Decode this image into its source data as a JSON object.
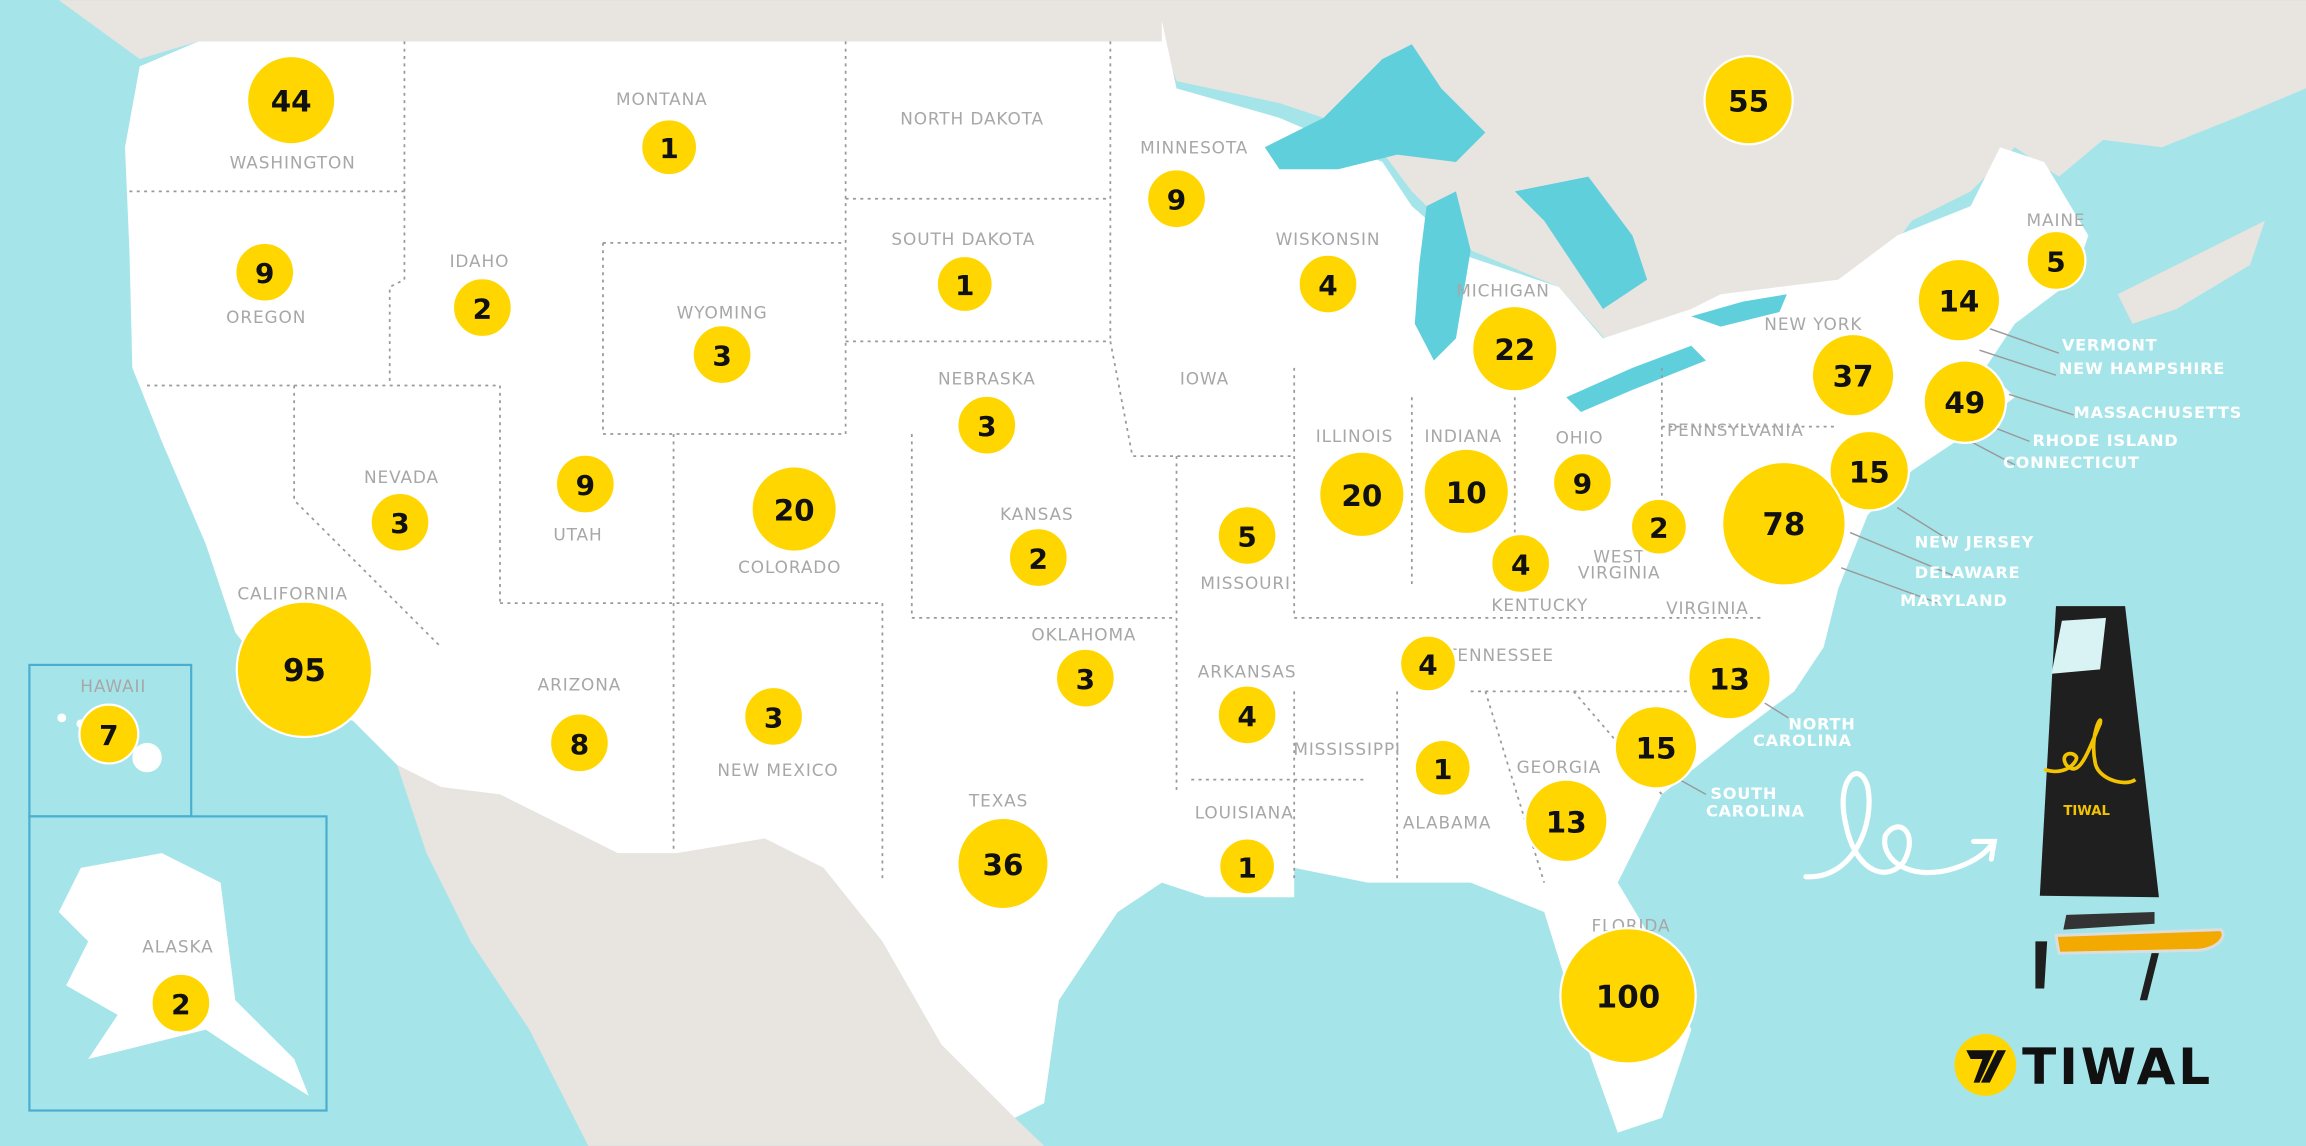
{
  "colors": {
    "water": "#a5e5ea",
    "land": "#ffffff",
    "foreign_land": "#e8e4e0",
    "lake": "#5fcfdc",
    "marker": "#ffd600",
    "marker_text": "#111111",
    "label": "#a7a7a7"
  },
  "state_labels": [
    "WASHINGTON",
    "MONTANA",
    "NORTH DAKOTA",
    "MINNESOTA",
    "SOUTH DAKOTA",
    "WISKONSIN",
    "MICHIGAN",
    "IDAHO",
    "OREGON",
    "WYOMING",
    "NEBRASKA",
    "IOWA",
    "NEW YORK",
    "PENNSYLVANIA",
    "ILLINOIS",
    "INDIANA",
    "OHIO",
    "NEVADA",
    "UTAH",
    "COLORADO",
    "KANSAS",
    "MISSOURI",
    "WEST",
    "VIRGINIA",
    "KENTUCKY",
    "VIRGINIA",
    "CALIFORNIA",
    "TENNESSEE",
    "OKLAHOMA",
    "ARKANSAS",
    "ARIZONA",
    "NEW MEXICO",
    "MISSISSIPPI",
    "ALABAMA",
    "GEORGIA",
    "TEXAS",
    "LOUISIANA",
    "HAWAII",
    "ALASKA",
    "FLORIDA",
    "MAINE"
  ],
  "callout_labels": [
    "VERMONT",
    "NEW HAMPSHIRE",
    "MASSACHUSETTS",
    "RHODE ISLAND",
    "CONNECTICUT",
    "NEW JERSEY",
    "DELAWARE",
    "MARYLAND",
    "NORTH",
    "CAROLINA",
    "SOUTH",
    "CAROLINA"
  ],
  "markers": [
    {
      "region": "Washington",
      "value": "44"
    },
    {
      "region": "Montana",
      "value": "1"
    },
    {
      "region": "Minnesota",
      "value": "9"
    },
    {
      "region": "Canada",
      "value": "55"
    },
    {
      "region": "Oregon",
      "value": "9"
    },
    {
      "region": "Idaho",
      "value": "2"
    },
    {
      "region": "Wyoming",
      "value": "3"
    },
    {
      "region": "South Dakota",
      "value": "1"
    },
    {
      "region": "Wisconsin",
      "value": "4"
    },
    {
      "region": "Michigan",
      "value": "22"
    },
    {
      "region": "New York",
      "value": "37"
    },
    {
      "region": "Vermont / New Hampshire",
      "value": "14"
    },
    {
      "region": "Maine",
      "value": "5"
    },
    {
      "region": "Massachusetts / Rhode Island / Connecticut",
      "value": "49"
    },
    {
      "region": "Nebraska",
      "value": "3"
    },
    {
      "region": "Nevada",
      "value": "3"
    },
    {
      "region": "Utah",
      "value": "9"
    },
    {
      "region": "Colorado",
      "value": "20"
    },
    {
      "region": "Kansas",
      "value": "2"
    },
    {
      "region": "Missouri",
      "value": "5"
    },
    {
      "region": "Illinois",
      "value": "20"
    },
    {
      "region": "Indiana",
      "value": "10"
    },
    {
      "region": "Ohio",
      "value": "9"
    },
    {
      "region": "West Virginia",
      "value": "2"
    },
    {
      "region": "New Jersey",
      "value": "15"
    },
    {
      "region": "Delaware / Maryland / Virginia / Pennsylvania",
      "value": "78"
    },
    {
      "region": "Kentucky",
      "value": "4"
    },
    {
      "region": "California",
      "value": "95"
    },
    {
      "region": "North Carolina",
      "value": "13"
    },
    {
      "region": "Tennessee",
      "value": "4"
    },
    {
      "region": "Oklahoma",
      "value": "3"
    },
    {
      "region": "Arkansas",
      "value": "4"
    },
    {
      "region": "Hawaii",
      "value": "7"
    },
    {
      "region": "Arizona",
      "value": "8"
    },
    {
      "region": "New Mexico",
      "value": "3"
    },
    {
      "region": "South Carolina",
      "value": "15"
    },
    {
      "region": "Alabama",
      "value": "1"
    },
    {
      "region": "Georgia",
      "value": "13"
    },
    {
      "region": "Texas",
      "value": "36"
    },
    {
      "region": "Louisiana",
      "value": "1"
    },
    {
      "region": "Florida",
      "value": "100"
    },
    {
      "region": "Alaska",
      "value": "2"
    }
  ],
  "brand": {
    "logo_text": "TIWAL",
    "sail_text": "TIWAL",
    "logo_mark_color": "#ffd600"
  }
}
